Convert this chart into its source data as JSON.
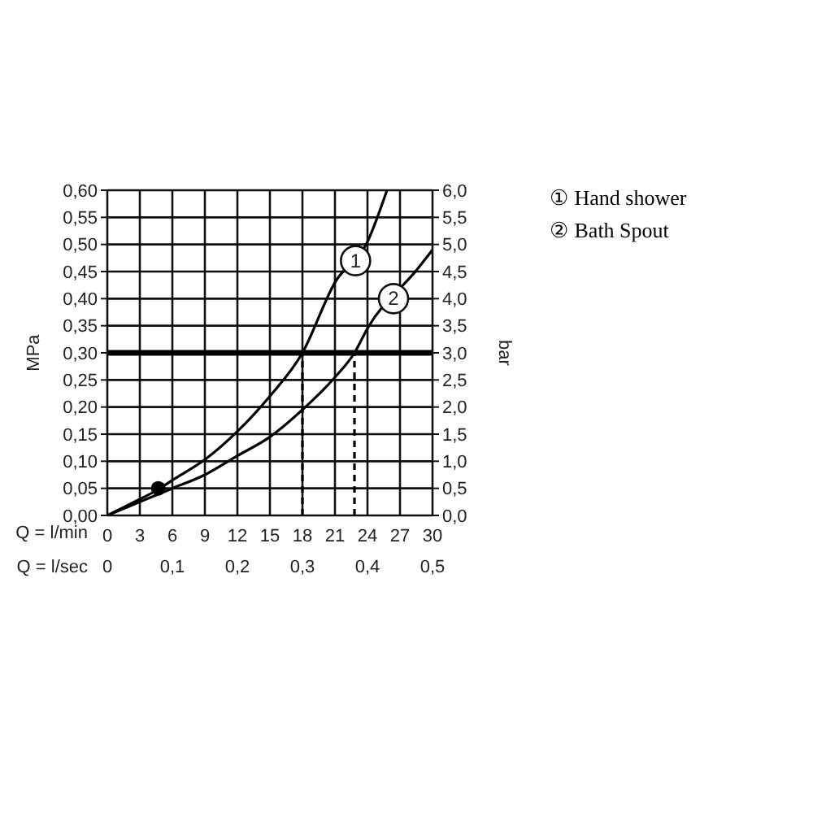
{
  "chart_data": {
    "type": "line",
    "xlabel": "Q = l/min",
    "x2label": "Q = l/sec",
    "ylabel": "MPa",
    "y2label": "bar",
    "xlim": [
      0,
      30
    ],
    "xticks": [
      0,
      3,
      6,
      9,
      12,
      15,
      18,
      21,
      24,
      27,
      30
    ],
    "x2lim": [
      0,
      0.5
    ],
    "x2ticks": [
      0,
      {
        "value": 0.1,
        "label": "0,1"
      },
      {
        "value": 0.2,
        "label": "0,2"
      },
      {
        "value": 0.3,
        "label": "0,3"
      },
      {
        "value": 0.4,
        "label": "0,4"
      },
      {
        "value": 0.5,
        "label": "0,5"
      }
    ],
    "ylim": [
      0,
      0.6
    ],
    "yticks": [
      {
        "value": 0,
        "label": "0,00"
      },
      {
        "value": 0.05,
        "label": "0,05"
      },
      {
        "value": 0.1,
        "label": "0,10"
      },
      {
        "value": 0.15,
        "label": "0,15"
      },
      {
        "value": 0.2,
        "label": "0,20"
      },
      {
        "value": 0.25,
        "label": "0,25"
      },
      {
        "value": 0.3,
        "label": "0,30"
      },
      {
        "value": 0.35,
        "label": "0,35"
      },
      {
        "value": 0.4,
        "label": "0,40"
      },
      {
        "value": 0.45,
        "label": "0,45"
      },
      {
        "value": 0.5,
        "label": "0,50"
      },
      {
        "value": 0.55,
        "label": "0,55"
      },
      {
        "value": 0.6,
        "label": "0,60"
      }
    ],
    "y2lim": [
      0,
      6
    ],
    "y2ticks": [
      {
        "value": 0,
        "label": "0,0"
      },
      {
        "value": 0.5,
        "label": "0,5"
      },
      {
        "value": 1,
        "label": "1,0"
      },
      {
        "value": 1.5,
        "label": "1,5"
      },
      {
        "value": 2,
        "label": "2,0"
      },
      {
        "value": 2.5,
        "label": "2,5"
      },
      {
        "value": 3,
        "label": "3,0"
      },
      {
        "value": 3.5,
        "label": "3,5"
      },
      {
        "value": 4,
        "label": "4,0"
      },
      {
        "value": 4.5,
        "label": "4,5"
      },
      {
        "value": 5,
        "label": "5,0"
      },
      {
        "value": 5.5,
        "label": "5,5"
      },
      {
        "value": 6,
        "label": "6,0"
      }
    ],
    "grid": true,
    "legend": "top right",
    "series": [
      {
        "name": "① Hand shower",
        "color": "#000000",
        "x": [
          0,
          3,
          4.7,
          6,
          9,
          12,
          15,
          18,
          21,
          24,
          25.8
        ],
        "values": [
          0,
          0.03,
          0.048,
          0.065,
          0.103,
          0.155,
          0.22,
          0.3,
          0.43,
          0.505,
          0.6
        ]
      },
      {
        "name": "② Bath Spout",
        "color": "#000000",
        "x": [
          0,
          3,
          6,
          9,
          12,
          15,
          18,
          21,
          22.8,
          24,
          28.5,
          30
        ],
        "values": [
          0,
          0.025,
          0.05,
          0.075,
          0.11,
          0.145,
          0.195,
          0.255,
          0.3,
          0.345,
          0.452,
          0.49
        ]
      },
      {
        "color": "#000000",
        "line_style": "dashed",
        "x": [
          18,
          18
        ],
        "values": [
          0,
          0.3
        ]
      },
      {
        "color": "#000000",
        "line_style": "dashed",
        "x": [
          22.8,
          22.8
        ],
        "values": [
          0,
          0.3
        ]
      },
      {
        "type": "scatter",
        "marker": "circle",
        "color": "#000000",
        "x": [
          4.7
        ],
        "values": [
          0.05
        ]
      }
    ],
    "ref_lines": [
      {
        "axis": "y",
        "value": 0.3,
        "color": "#000000"
      }
    ],
    "annotations": [
      {
        "text": "1",
        "x": 22.9,
        "y": 0.47
      },
      {
        "text": "2",
        "x": 26.4,
        "y": 0.4
      }
    ]
  }
}
